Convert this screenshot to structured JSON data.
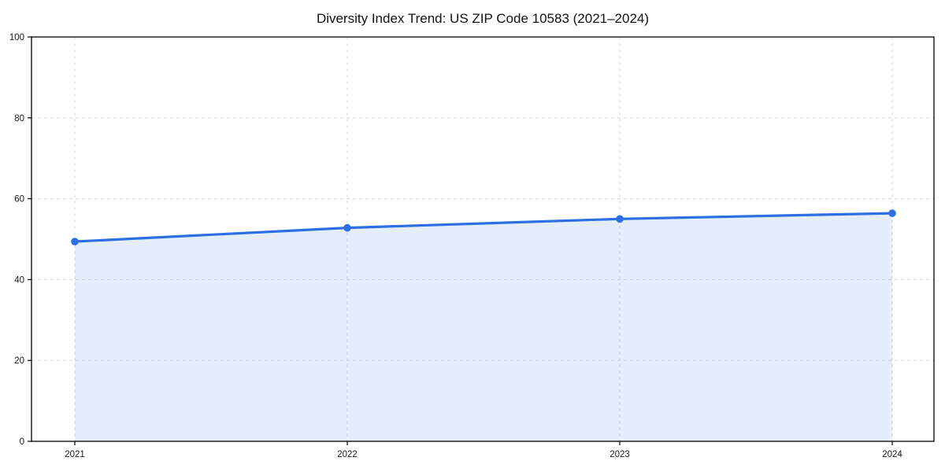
{
  "title": "Diversity Index Trend: US ZIP Code 10583 (2021–2024)",
  "chart_data": {
    "type": "area",
    "title": "Diversity Index Trend: US ZIP Code 10583 (2021–2024)",
    "x": [
      2021,
      2022,
      2023,
      2024
    ],
    "xticks": [
      "2021",
      "2022",
      "2023",
      "2024"
    ],
    "series": [
      {
        "name": "Diversity Index",
        "values": [
          49.4,
          52.8,
          55.0,
          56.4
        ]
      }
    ],
    "xlabel": "",
    "ylabel": "",
    "ylim": [
      0,
      100
    ],
    "yticks": [
      0,
      20,
      40,
      60,
      80,
      100
    ],
    "grid": true,
    "grid_style": "dashed",
    "legend_position": "none",
    "line_color": "#2b6fe2",
    "marker_color": "#2b6fe2",
    "fill_color": "rgba(43,111,226,0.12)",
    "grid_color": "#dcdcdc",
    "spine_color": "#000000",
    "background_color": "#ffffff"
  }
}
